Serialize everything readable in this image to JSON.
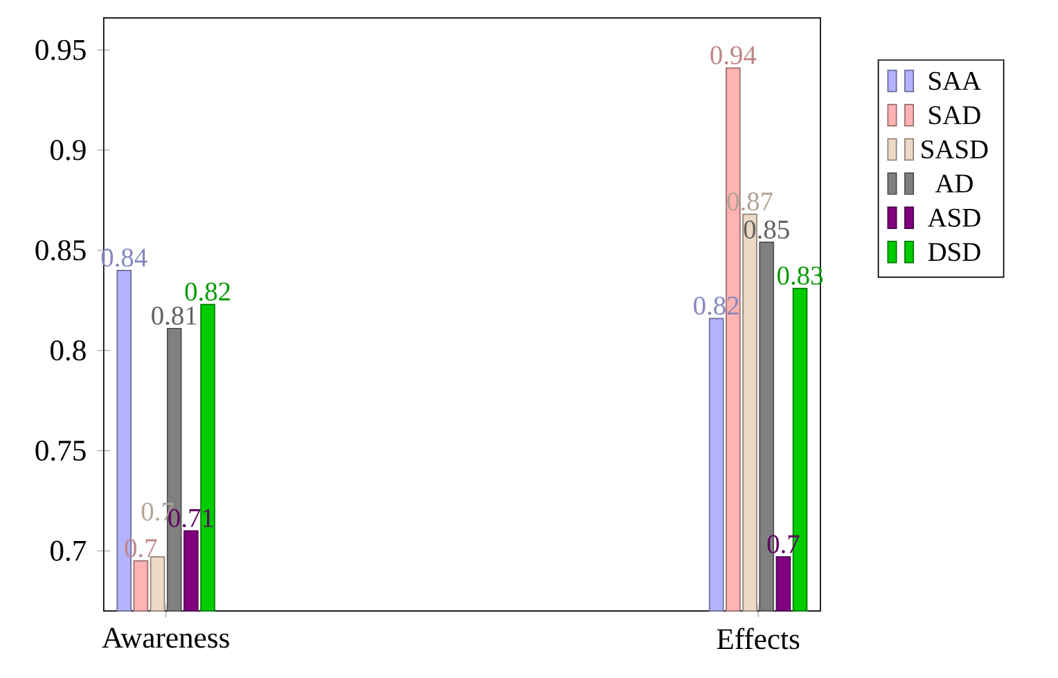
{
  "chart_data": {
    "type": "bar",
    "categories": [
      "Awareness",
      "Effects"
    ],
    "series": [
      {
        "name": "SAA",
        "color": "#b3b3ff",
        "values": [
          0.84,
          0.816
        ],
        "value_labels": [
          "0.84",
          "0.82"
        ]
      },
      {
        "name": "SAD",
        "color": "#ffb3b3",
        "values": [
          0.695,
          0.941
        ],
        "value_labels": [
          "0.7",
          "0.94"
        ]
      },
      {
        "name": "SASD",
        "color": "#ecd9c6",
        "values": [
          0.697,
          0.868
        ],
        "value_labels": [
          "0.7",
          "0.87"
        ]
      },
      {
        "name": "AD",
        "color": "#808080",
        "values": [
          0.811,
          0.854
        ],
        "value_labels": [
          "0.81",
          "0.85"
        ]
      },
      {
        "name": "ASD",
        "color": "#800080",
        "values": [
          0.71,
          0.697
        ],
        "value_labels": [
          "0.71",
          "0.7"
        ]
      },
      {
        "name": "DSD",
        "color": "#00cc00",
        "values": [
          0.823,
          0.831
        ],
        "value_labels": [
          "0.82",
          "0.83"
        ]
      }
    ],
    "ylim": [
      0.67,
      0.966
    ],
    "yticks": [
      0.7,
      0.75,
      0.8,
      0.85,
      0.9,
      0.95
    ],
    "legend": "right",
    "grid": false
  }
}
